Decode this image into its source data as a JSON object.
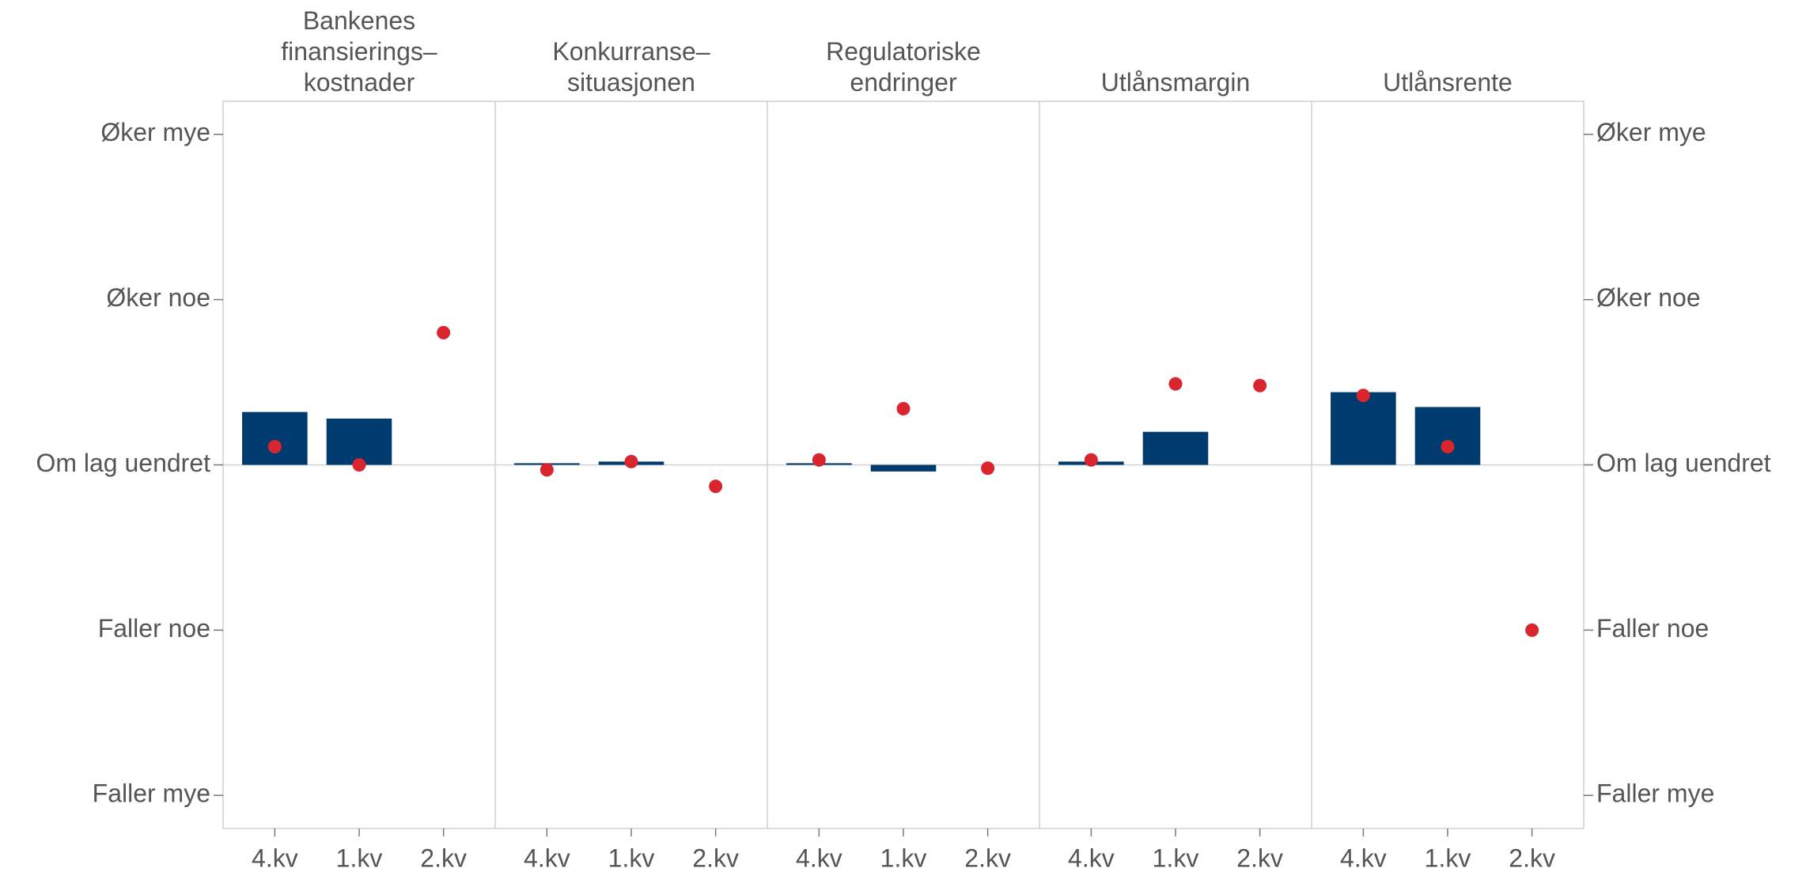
{
  "chart_data": {
    "type": "bar",
    "panels": [
      "Bankenes\nfinansierings–\nkostnader",
      "Konkurranse–\nsituasjonen",
      "Regulatoriske\nendringer",
      "Utlånsmargin",
      "Utlånsrente"
    ],
    "categories": [
      "4.kv",
      "1.kv",
      "2.kv"
    ],
    "ylim": [
      -2.2,
      2.2
    ],
    "yticks": [
      {
        "value": -2,
        "label": "Faller mye"
      },
      {
        "value": -1,
        "label": "Faller noe"
      },
      {
        "value": 0,
        "label": "Om lag uendret"
      },
      {
        "value": 1,
        "label": "Øker noe"
      },
      {
        "value": 2,
        "label": "Øker mye"
      }
    ],
    "series": [
      {
        "type": "bar",
        "color": "#003b6f",
        "values": [
          [
            0.32,
            0.28,
            null
          ],
          [
            0.01,
            0.02,
            null
          ],
          [
            0.01,
            -0.04,
            null
          ],
          [
            0.02,
            0.2,
            null
          ],
          [
            0.44,
            0.35,
            null
          ]
        ]
      },
      {
        "type": "scatter",
        "color": "#d9262e",
        "values": [
          [
            0.11,
            0,
            0.8
          ],
          [
            -0.03,
            0.02,
            -0.13
          ],
          [
            0.03,
            0.34,
            -0.02
          ],
          [
            0.03,
            0.49,
            0.48
          ],
          [
            0.42,
            0.11,
            -1.0
          ]
        ]
      }
    ]
  }
}
